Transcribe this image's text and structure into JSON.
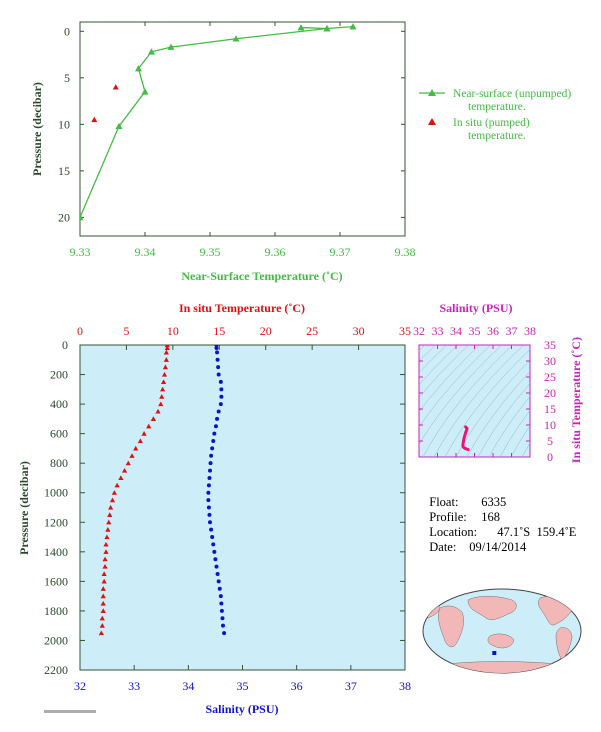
{
  "colors": {
    "green": "#44bb44",
    "red": "#dd1111",
    "blue": "#1111cc",
    "magenta": "#cc22bb",
    "axis_dark": "#2a4a2a",
    "panel_bg": "#cdeef8"
  },
  "chart_data": [
    {
      "type": "line",
      "xlabel": "Near-Surface Temperature (˚C)",
      "ylabel": "Pressure (decibar)",
      "xlim": [
        9.33,
        9.38
      ],
      "ylim": [
        22,
        -1
      ],
      "x_ticks": [
        "9.33",
        "9.34",
        "9.35",
        "9.36",
        "9.37",
        "9.38"
      ],
      "y_ticks": [
        "0",
        "5",
        "10",
        "15",
        "20"
      ],
      "legend_position": "right",
      "series": [
        {
          "name": "Near-surface (unpumped) temperature.",
          "marker": "triangle-line",
          "points": [
            [
              9.372,
              -0.5
            ],
            [
              9.368,
              -0.3
            ],
            [
              9.364,
              -0.4
            ],
            [
              9.368,
              -0.3
            ],
            [
              9.354,
              0.8
            ],
            [
              9.344,
              1.7
            ],
            [
              9.341,
              2.2
            ],
            [
              9.339,
              4.0
            ],
            [
              9.34,
              6.5
            ],
            [
              9.336,
              10.2
            ],
            [
              9.33,
              20.0
            ]
          ]
        },
        {
          "name": "In situ (pumped) temperature.",
          "marker": "triangle",
          "points": [
            [
              9.3355,
              6.0
            ],
            [
              9.3322,
              9.5
            ]
          ]
        }
      ]
    },
    {
      "type": "scatter",
      "ylabel": "Pressure (decibar)",
      "ylim": [
        2200,
        0
      ],
      "y_ticks": [
        "0",
        "200",
        "400",
        "600",
        "800",
        "1000",
        "1200",
        "1400",
        "1600",
        "1800",
        "2000",
        "2200"
      ],
      "top_axis": {
        "label": "In situ Temperature (˚C)",
        "range": [
          0,
          35
        ],
        "ticks": [
          "0",
          "5",
          "10",
          "15",
          "20",
          "25",
          "30",
          "35"
        ]
      },
      "bottom_axis": {
        "label": "Salinity (PSU)",
        "range": [
          32,
          38
        ],
        "ticks": [
          "32",
          "33",
          "34",
          "35",
          "36",
          "37",
          "38"
        ]
      },
      "temperature_profile": [
        [
          0,
          9.4
        ],
        [
          20,
          9.4
        ],
        [
          50,
          9.3
        ],
        [
          100,
          9.3
        ],
        [
          150,
          9.2
        ],
        [
          200,
          9.1
        ],
        [
          250,
          9.0
        ],
        [
          300,
          8.9
        ],
        [
          350,
          8.8
        ],
        [
          400,
          8.7
        ],
        [
          450,
          8.4
        ],
        [
          500,
          7.9
        ],
        [
          550,
          7.4
        ],
        [
          600,
          6.9
        ],
        [
          650,
          6.5
        ],
        [
          700,
          6.0
        ],
        [
          750,
          5.6
        ],
        [
          800,
          5.2
        ],
        [
          850,
          4.8
        ],
        [
          900,
          4.4
        ],
        [
          950,
          4.0
        ],
        [
          1000,
          3.7
        ],
        [
          1050,
          3.5
        ],
        [
          1100,
          3.3
        ],
        [
          1150,
          3.2
        ],
        [
          1200,
          3.1
        ],
        [
          1250,
          3.0
        ],
        [
          1300,
          2.9
        ],
        [
          1350,
          2.8
        ],
        [
          1400,
          2.8
        ],
        [
          1450,
          2.7
        ],
        [
          1500,
          2.7
        ],
        [
          1550,
          2.6
        ],
        [
          1600,
          2.6
        ],
        [
          1650,
          2.5
        ],
        [
          1700,
          2.5
        ],
        [
          1750,
          2.5
        ],
        [
          1800,
          2.5
        ],
        [
          1850,
          2.4
        ],
        [
          1900,
          2.4
        ],
        [
          1950,
          2.3
        ]
      ],
      "salinity_profile": [
        [
          0,
          34.52
        ],
        [
          20,
          34.52
        ],
        [
          50,
          34.53
        ],
        [
          100,
          34.54
        ],
        [
          150,
          34.55
        ],
        [
          200,
          34.56
        ],
        [
          250,
          34.6
        ],
        [
          300,
          34.61
        ],
        [
          350,
          34.61
        ],
        [
          400,
          34.6
        ],
        [
          450,
          34.56
        ],
        [
          500,
          34.53
        ],
        [
          550,
          34.51
        ],
        [
          600,
          34.48
        ],
        [
          650,
          34.46
        ],
        [
          700,
          34.44
        ],
        [
          750,
          34.42
        ],
        [
          800,
          34.41
        ],
        [
          850,
          34.4
        ],
        [
          900,
          34.39
        ],
        [
          950,
          34.38
        ],
        [
          1000,
          34.37
        ],
        [
          1050,
          34.37
        ],
        [
          1100,
          34.38
        ],
        [
          1150,
          34.39
        ],
        [
          1200,
          34.4
        ],
        [
          1250,
          34.42
        ],
        [
          1300,
          34.44
        ],
        [
          1350,
          34.46
        ],
        [
          1400,
          34.48
        ],
        [
          1450,
          34.5
        ],
        [
          1500,
          34.52
        ],
        [
          1550,
          34.54
        ],
        [
          1600,
          34.56
        ],
        [
          1650,
          34.58
        ],
        [
          1700,
          34.6
        ],
        [
          1750,
          34.61
        ],
        [
          1800,
          34.62
        ],
        [
          1850,
          34.63
        ],
        [
          1900,
          34.64
        ],
        [
          1950,
          34.66
        ]
      ]
    },
    {
      "type": "scatter",
      "title": "Salinity (PSU)",
      "ylabel": "In situ Temperature (˚C)",
      "xlim": [
        32,
        38
      ],
      "ylim": [
        0,
        35
      ],
      "x_ticks": [
        "32",
        "33",
        "34",
        "35",
        "36",
        "37",
        "38"
      ],
      "y_ticks": [
        "0",
        "5",
        "10",
        "15",
        "20",
        "25",
        "30",
        "35"
      ],
      "ts_points": [
        [
          34.52,
          9.4
        ],
        [
          34.55,
          9.2
        ],
        [
          34.6,
          8.9
        ],
        [
          34.58,
          8.5
        ],
        [
          34.52,
          7.6
        ],
        [
          34.47,
          6.6
        ],
        [
          34.42,
          5.5
        ],
        [
          34.39,
          4.5
        ],
        [
          34.37,
          3.6
        ],
        [
          34.4,
          3.1
        ],
        [
          34.46,
          2.8
        ],
        [
          34.52,
          2.6
        ],
        [
          34.58,
          2.5
        ],
        [
          34.63,
          2.4
        ],
        [
          34.66,
          2.3
        ]
      ]
    }
  ],
  "info": {
    "float_label": "Float:",
    "float_value": "6335",
    "profile_label": "Profile:",
    "profile_value": "168",
    "location_label": "Location:",
    "location_value": "47.1˚S  159.4˚E",
    "date_label": "Date:",
    "date_value": "09/14/2014"
  },
  "map": {
    "float_lon": 159.4,
    "float_lat": -47.1
  }
}
